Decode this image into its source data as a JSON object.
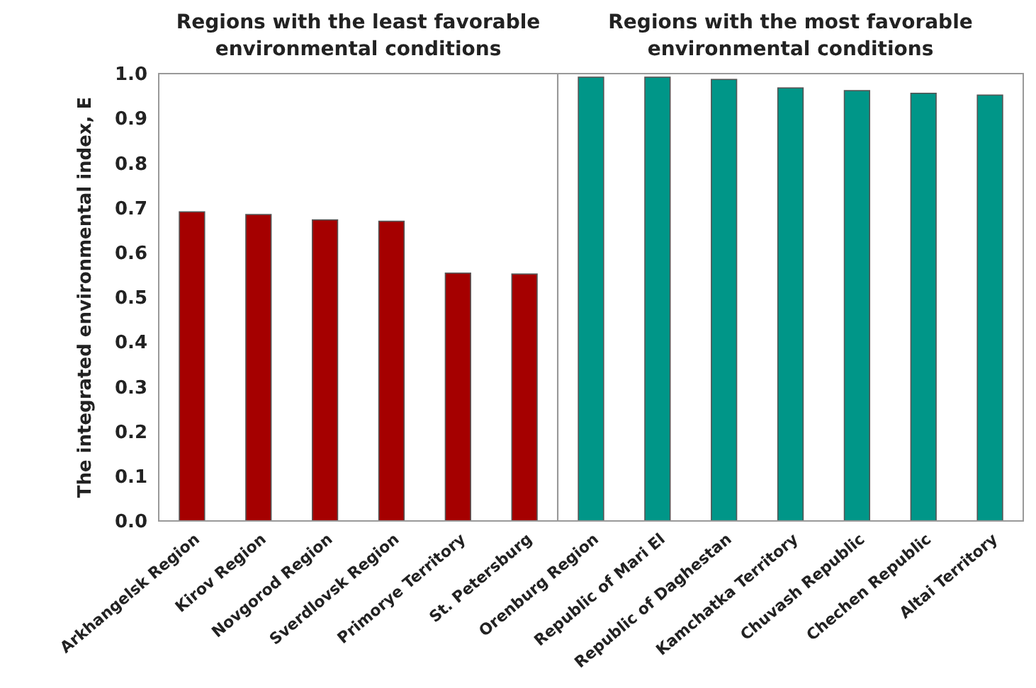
{
  "chart_data": [
    {
      "type": "bar",
      "title": "Regions with the least favorable environmental conditions",
      "ylabel": "The integrated environmental index, E",
      "categories": [
        "Arkhangelsk Region",
        "Kirov Region",
        "Novgorod Region",
        "Sverdlovsk Region",
        "Primorye Territory",
        "St. Petersburg"
      ],
      "values": [
        0.691,
        0.685,
        0.673,
        0.67,
        0.554,
        0.552
      ],
      "color": "#a50000",
      "ylim": [
        0,
        1
      ],
      "yticks": [
        {
          "value": 0,
          "label": "0.0"
        },
        {
          "value": 0.1,
          "label": "0.1"
        },
        {
          "value": 0.2,
          "label": "0.2"
        },
        {
          "value": 0.3,
          "label": "0.3"
        },
        {
          "value": 0.4,
          "label": "0.4"
        },
        {
          "value": 0.5,
          "label": "0.5"
        },
        {
          "value": 0.6,
          "label": "0.6"
        },
        {
          "value": 0.7,
          "label": "0.7"
        },
        {
          "value": 0.8,
          "label": "0.8"
        },
        {
          "value": 0.9,
          "label": "0.9"
        },
        {
          "value": 1,
          "label": "1.0"
        }
      ]
    },
    {
      "type": "bar",
      "title": "Regions with the most favorable environmental conditions",
      "categories": [
        "Orenburg Region",
        "Republic of Mari El",
        "Republic of Daghestan",
        "Kamchatka Territory",
        "Chuvash Republic",
        "Chechen Republic",
        "Altai Territory"
      ],
      "values": [
        0.992,
        0.992,
        0.987,
        0.968,
        0.962,
        0.956,
        0.952
      ],
      "color": "#009688",
      "ylim": [
        0,
        1
      ],
      "tick_labels": "x"
    }
  ]
}
